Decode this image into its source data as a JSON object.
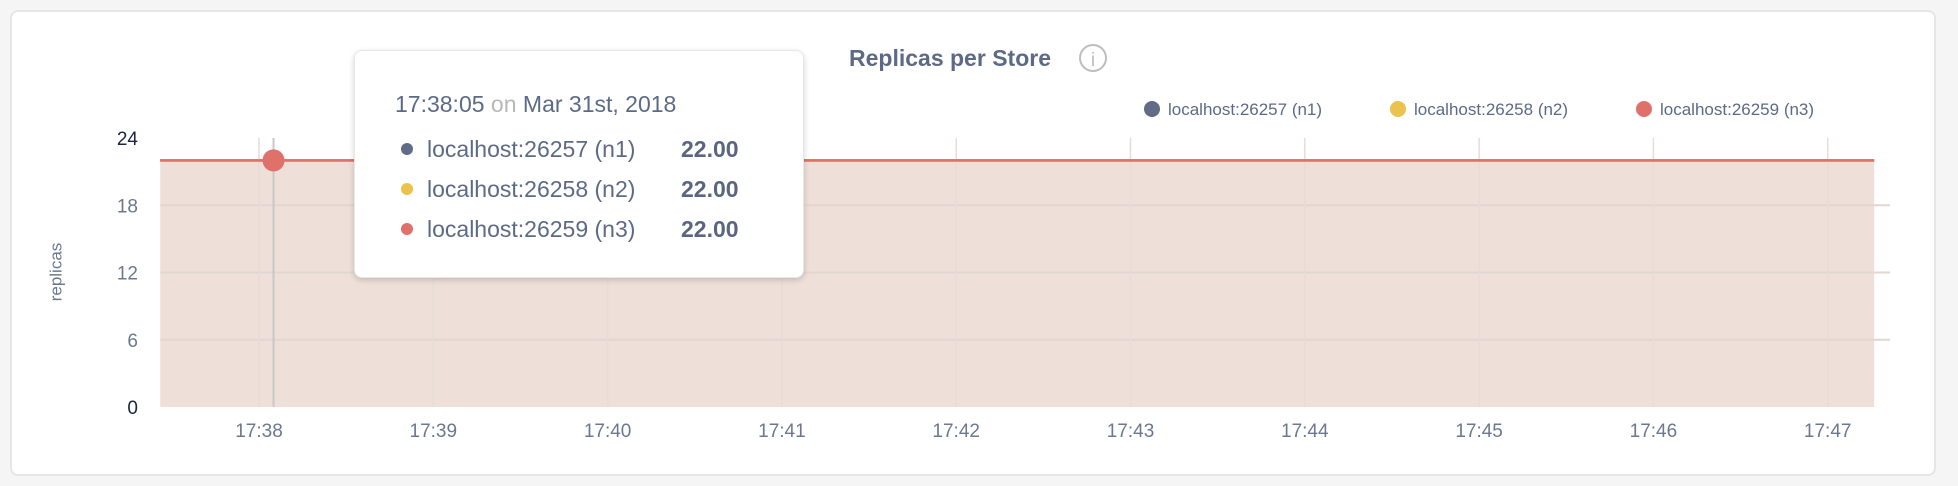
{
  "chart_data": {
    "type": "area",
    "title": "Replicas per Store",
    "info_icon": "info-circle-icon",
    "ylabel": "replicas",
    "xlabel": "",
    "ylim": [
      0,
      24
    ],
    "yticks": [
      "0",
      "6",
      "12",
      "18",
      "24"
    ],
    "ytick_values": [
      0,
      6,
      12,
      18,
      24
    ],
    "xticks": [
      "17:38",
      "17:39",
      "17:40",
      "17:41",
      "17:42",
      "17:43",
      "17:44",
      "17:45",
      "17:46",
      "17:47"
    ],
    "xlim": [
      "17:37:26",
      "17:47:16"
    ],
    "grid": true,
    "legend_position": "top-right",
    "series": [
      {
        "name": "localhost:26257 (n1)",
        "color": "#5f6b87",
        "x": [
          "17:37:26",
          "17:47:16"
        ],
        "values": [
          22,
          22
        ]
      },
      {
        "name": "localhost:26258 (n2)",
        "color": "#ebc24b",
        "x": [
          "17:37:26",
          "17:47:16"
        ],
        "values": [
          22,
          22
        ]
      },
      {
        "name": "localhost:26259 (n3)",
        "color": "#e0706a",
        "x": [
          "17:37:26",
          "17:47:16"
        ],
        "values": [
          22,
          22
        ]
      }
    ],
    "fill_color": "#eedfd8",
    "hover": {
      "time": "17:38:05",
      "on": "on",
      "date": "Mar 31st, 2018",
      "rows": [
        {
          "label": "localhost:26257 (n1)",
          "value": "22.00",
          "color": "#5f6b87"
        },
        {
          "label": "localhost:26258 (n2)",
          "value": "22.00",
          "color": "#ebc24b"
        },
        {
          "label": "localhost:26259 (n3)",
          "value": "22.00",
          "color": "#e0706a"
        }
      ]
    }
  }
}
